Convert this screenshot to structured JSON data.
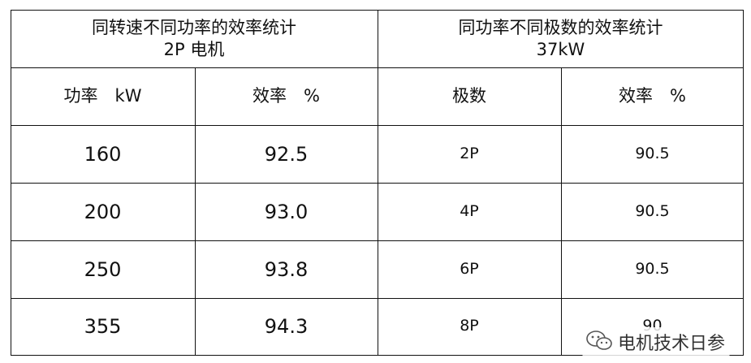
{
  "header": {
    "left_line1": "同转速不同功率的效率统计",
    "left_line2": "2P 电机",
    "right_line1": "同功率不同极数的效率统计",
    "right_line2": "37kW"
  },
  "columns": [
    "功率　kW",
    "效率　%",
    "极数",
    "效率　%"
  ],
  "rows": [
    [
      "160",
      "92.5",
      "2P",
      "90.5"
    ],
    [
      "200",
      "93.0",
      "4P",
      "90.5"
    ],
    [
      "250",
      "93.8",
      "6P",
      "90.5"
    ],
    [
      "355",
      "94.3",
      "8P",
      "90"
    ]
  ],
  "watermark": {
    "icon": "wechat-icon",
    "text": "电机技术日参"
  }
}
